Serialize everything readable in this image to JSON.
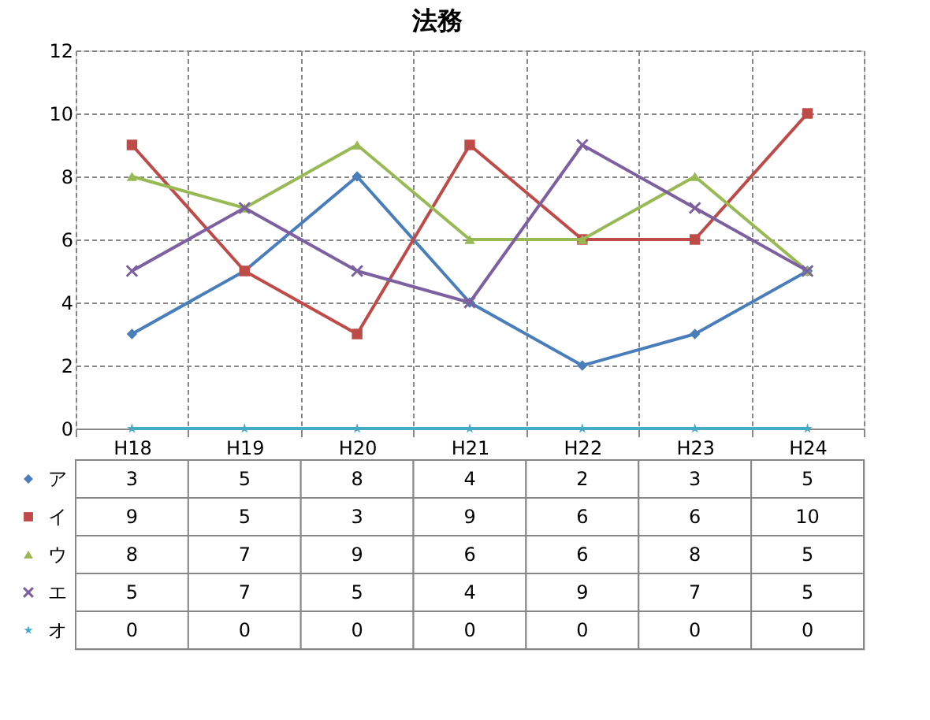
{
  "chart_data": {
    "type": "line",
    "title": "法務",
    "categories": [
      "H18",
      "H19",
      "H20",
      "H21",
      "H22",
      "H23",
      "H24"
    ],
    "series": [
      {
        "name": "ア",
        "color": "#4a7ebb",
        "marker": "diamond",
        "values": [
          3,
          5,
          8,
          4,
          2,
          3,
          5
        ]
      },
      {
        "name": "イ",
        "color": "#be4b48",
        "marker": "square",
        "values": [
          9,
          5,
          3,
          9,
          6,
          6,
          10
        ]
      },
      {
        "name": "ウ",
        "color": "#98b954",
        "marker": "triangle",
        "values": [
          8,
          7,
          9,
          6,
          6,
          8,
          5
        ]
      },
      {
        "name": "エ",
        "color": "#7d60a0",
        "marker": "cross",
        "values": [
          5,
          7,
          5,
          4,
          9,
          7,
          5
        ]
      },
      {
        "name": "オ",
        "color": "#46aac5",
        "marker": "star",
        "values": [
          0,
          0,
          0,
          0,
          0,
          0,
          0
        ]
      }
    ],
    "ylim": [
      0,
      12
    ],
    "yticks": [
      0,
      2,
      4,
      6,
      8,
      10,
      12
    ],
    "grid": true,
    "legend": "bottom",
    "data_labels": true
  }
}
